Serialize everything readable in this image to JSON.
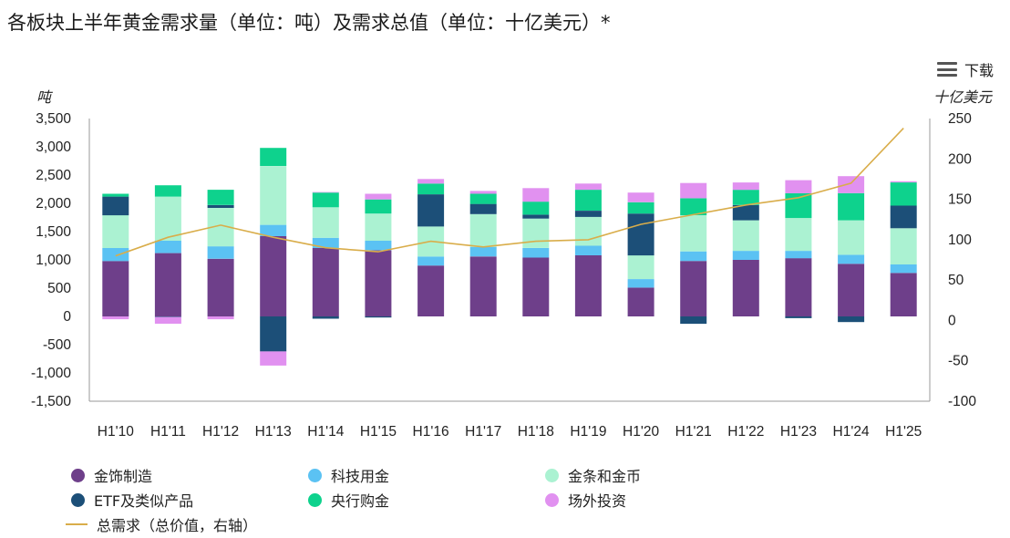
{
  "title": "各板块上半年黄金需求量（单位：吨）及需求总值（单位：十亿美元）*",
  "download_label": "下载",
  "colors": {
    "jewellery": "#6e3f8a",
    "technology": "#5bc2f3",
    "bars_coins": "#abf2d2",
    "etf": "#1c4f78",
    "central_banks": "#0ed28d",
    "otc": "#e191f0",
    "total_value": "#d9ad4a",
    "axis": "#999999"
  },
  "chart_data": {
    "type": "bar",
    "stacked": true,
    "categories": [
      "H1'10",
      "H1'11",
      "H1'12",
      "H1'13",
      "H1'14",
      "H1'15",
      "H1'16",
      "H1'17",
      "H1'18",
      "H1'19",
      "H1'20",
      "H1'21",
      "H1'22",
      "H1'23",
      "H1'24",
      "H1'25"
    ],
    "ylabel": "吨",
    "y2label": "十亿美元",
    "ylim": [
      -1500,
      3500
    ],
    "yticks": [
      -1500,
      -1000,
      -500,
      0,
      500,
      1000,
      1500,
      2000,
      2500,
      3000,
      3500
    ],
    "ytick_labels": [
      "-1,500",
      "-1,000",
      "-500",
      "0",
      "500",
      "1,000",
      "1,500",
      "2,000",
      "2,500",
      "3,000",
      "3,500"
    ],
    "y2lim": [
      -100,
      250
    ],
    "y2ticks": [
      -100,
      -50,
      0,
      50,
      100,
      150,
      200,
      250
    ],
    "y2tick_labels": [
      "-100",
      "-50",
      "0",
      "50",
      "100",
      "150",
      "200",
      "250"
    ],
    "series": [
      {
        "name": "金饰制造",
        "key": "jewellery",
        "values": [
          980,
          1120,
          1020,
          1420,
          1210,
          1170,
          900,
          1060,
          1040,
          1080,
          510,
          980,
          1000,
          1030,
          930,
          770
        ]
      },
      {
        "name": "科技用金",
        "key": "technology",
        "values": [
          230,
          220,
          220,
          200,
          180,
          170,
          160,
          170,
          170,
          170,
          150,
          170,
          160,
          130,
          160,
          150
        ]
      },
      {
        "name": "金条和金币",
        "key": "bars_coins",
        "values": [
          580,
          780,
          680,
          1040,
          540,
          480,
          530,
          580,
          520,
          510,
          420,
          640,
          540,
          580,
          610,
          640
        ]
      },
      {
        "name": "ETF及类似产品",
        "key": "etf",
        "values": [
          330,
          -10,
          50,
          -620,
          -40,
          -20,
          570,
          180,
          70,
          110,
          740,
          -130,
          270,
          -30,
          -100,
          400
        ]
      },
      {
        "name": "央行购金",
        "key": "central_banks",
        "values": [
          50,
          200,
          270,
          320,
          260,
          250,
          190,
          180,
          230,
          370,
          200,
          300,
          270,
          440,
          480,
          410
        ]
      },
      {
        "name": "场外投资",
        "key": "otc",
        "values": [
          -50,
          -120,
          -50,
          -250,
          10,
          100,
          80,
          50,
          240,
          110,
          170,
          270,
          130,
          230,
          300,
          20
        ]
      }
    ],
    "line": {
      "name": "总需求（总价值，右轴）",
      "key": "total_value",
      "axis": "right",
      "values": [
        80,
        103,
        118,
        103,
        90,
        85,
        98,
        91,
        98,
        100,
        119,
        131,
        143,
        152,
        170,
        238
      ]
    },
    "legend_position": "bottom",
    "grid": false
  }
}
